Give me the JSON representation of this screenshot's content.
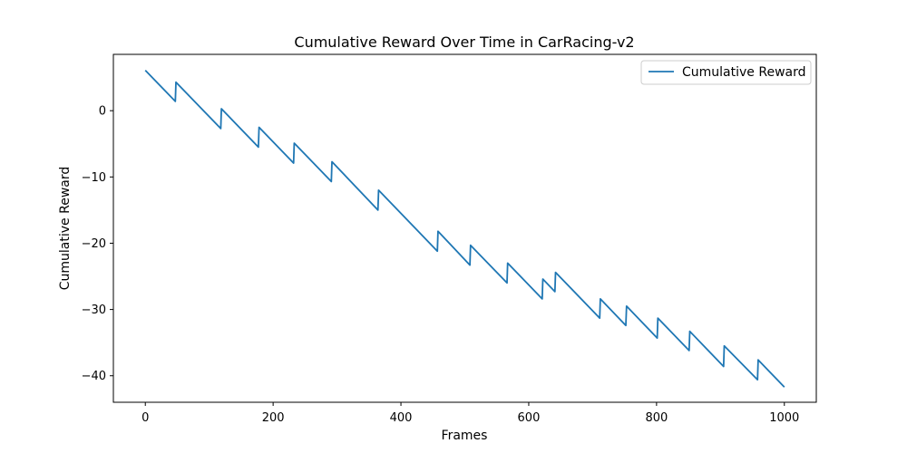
{
  "chart_data": {
    "type": "line",
    "title": "Cumulative Reward Over Time in CarRacing-v2",
    "xlabel": "Frames",
    "ylabel": "Cumulative Reward",
    "xlim": [
      -50,
      1050
    ],
    "ylim": [
      -44,
      8.5
    ],
    "xticks": [
      0,
      200,
      400,
      600,
      800,
      1000
    ],
    "yticks": [
      0,
      -10,
      -20,
      -30,
      -40
    ],
    "grid": false,
    "legend_position": "top-right",
    "series": [
      {
        "name": "Cumulative Reward",
        "color": "#1f77b4",
        "x": [
          0,
          47,
          48,
          118,
          119,
          177,
          178,
          232,
          233,
          291,
          292,
          364,
          365,
          457,
          458,
          508,
          509,
          566,
          567,
          621,
          622,
          641,
          642,
          711,
          712,
          752,
          753,
          801,
          802,
          851,
          852,
          905,
          906,
          958,
          959,
          1000
        ],
        "y": [
          6.1,
          1.4,
          4.3,
          -2.7,
          0.3,
          -5.5,
          -2.5,
          -7.9,
          -4.9,
          -10.7,
          -7.7,
          -15.0,
          -12.0,
          -21.2,
          -18.2,
          -23.3,
          -20.3,
          -26.0,
          -23.0,
          -28.4,
          -25.4,
          -27.3,
          -24.4,
          -31.3,
          -28.4,
          -32.4,
          -29.5,
          -34.3,
          -31.3,
          -36.2,
          -33.3,
          -38.6,
          -35.5,
          -40.6,
          -37.6,
          -41.7
        ]
      }
    ]
  }
}
